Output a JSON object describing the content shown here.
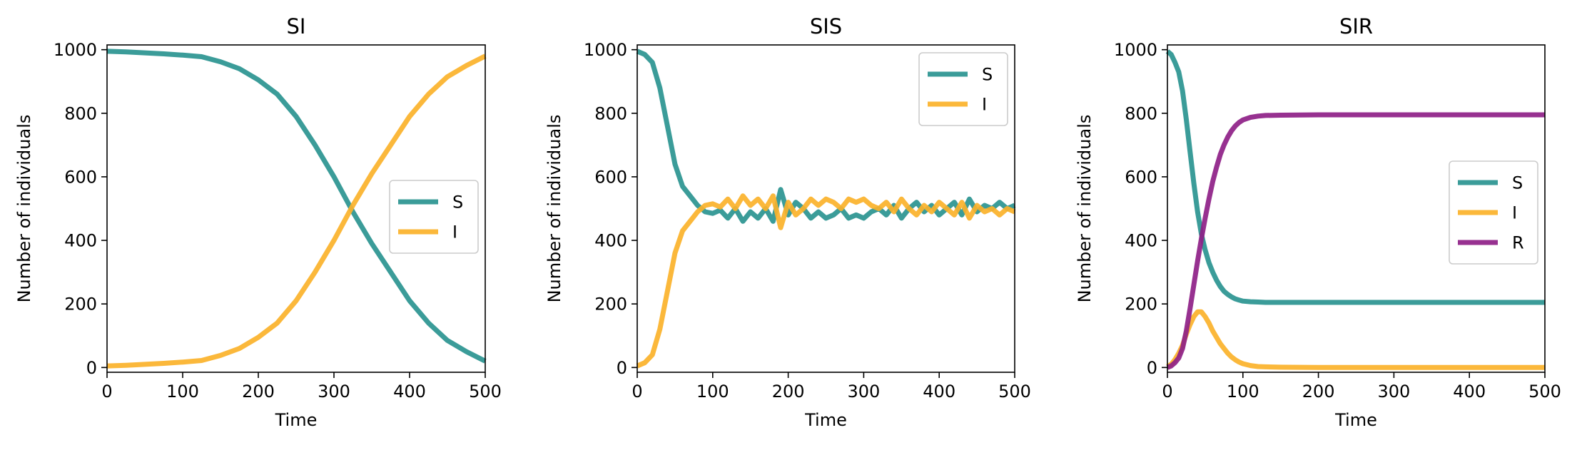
{
  "colors": {
    "S": "#2a9490",
    "I": "#fbb22a",
    "R": "#8e1f87"
  },
  "chart_data": [
    {
      "type": "line",
      "title": "SI",
      "xlabel": "Time",
      "ylabel": "Number of individuals",
      "xlim": [
        0,
        500
      ],
      "ylim": [
        -15,
        1015
      ],
      "xticks": [
        0,
        100,
        200,
        300,
        400,
        500
      ],
      "yticks": [
        0,
        200,
        400,
        600,
        800,
        1000
      ],
      "grid": false,
      "legend": "center-right",
      "x": [
        0,
        25,
        50,
        75,
        100,
        125,
        150,
        175,
        200,
        225,
        250,
        275,
        300,
        325,
        350,
        375,
        400,
        425,
        450,
        475,
        500
      ],
      "series": [
        {
          "name": "S",
          "color": "#2a9490",
          "values": [
            995,
            993,
            990,
            987,
            983,
            978,
            962,
            940,
            905,
            860,
            790,
            700,
            600,
            490,
            390,
            300,
            210,
            140,
            85,
            50,
            20
          ]
        },
        {
          "name": "I",
          "color": "#fbb22a",
          "values": [
            5,
            7,
            10,
            13,
            17,
            22,
            38,
            60,
            95,
            140,
            210,
            300,
            400,
            510,
            610,
            700,
            790,
            860,
            915,
            950,
            980
          ]
        }
      ]
    },
    {
      "type": "line",
      "title": "SIS",
      "xlabel": "Time",
      "ylabel": "Number of individuals",
      "xlim": [
        0,
        500
      ],
      "ylim": [
        -15,
        1015
      ],
      "xticks": [
        0,
        100,
        200,
        300,
        400,
        500
      ],
      "yticks": [
        0,
        200,
        400,
        600,
        800,
        1000
      ],
      "grid": false,
      "legend": "top-right",
      "x": [
        0,
        10,
        20,
        30,
        40,
        50,
        60,
        70,
        80,
        90,
        100,
        110,
        120,
        130,
        140,
        150,
        160,
        170,
        180,
        190,
        200,
        210,
        220,
        230,
        240,
        250,
        260,
        270,
        280,
        290,
        300,
        310,
        320,
        330,
        340,
        350,
        360,
        370,
        380,
        390,
        400,
        410,
        420,
        430,
        440,
        450,
        460,
        470,
        480,
        490,
        500
      ],
      "series": [
        {
          "name": "S",
          "color": "#2a9490",
          "values": [
            995,
            985,
            960,
            880,
            760,
            640,
            570,
            540,
            510,
            490,
            485,
            495,
            470,
            500,
            460,
            490,
            470,
            500,
            460,
            560,
            480,
            520,
            500,
            470,
            490,
            470,
            480,
            500,
            470,
            480,
            470,
            490,
            500,
            480,
            510,
            470,
            500,
            520,
            490,
            510,
            480,
            500,
            520,
            480,
            530,
            490,
            510,
            500,
            520,
            500,
            510
          ]
        },
        {
          "name": "I",
          "color": "#fbb22a",
          "values": [
            5,
            15,
            40,
            120,
            240,
            360,
            430,
            460,
            490,
            510,
            515,
            505,
            530,
            500,
            540,
            510,
            530,
            500,
            540,
            440,
            520,
            480,
            500,
            530,
            510,
            530,
            520,
            500,
            530,
            520,
            530,
            510,
            500,
            520,
            490,
            530,
            500,
            480,
            510,
            490,
            520,
            500,
            480,
            520,
            470,
            510,
            490,
            500,
            480,
            500,
            490
          ]
        }
      ]
    },
    {
      "type": "line",
      "title": "SIR",
      "xlabel": "Time",
      "ylabel": "Number of individuals",
      "xlim": [
        0,
        500
      ],
      "ylim": [
        -15,
        1015
      ],
      "xticks": [
        0,
        100,
        200,
        300,
        400,
        500
      ],
      "yticks": [
        0,
        200,
        400,
        600,
        800,
        1000
      ],
      "grid": false,
      "legend": "center-right",
      "x": [
        0,
        5,
        10,
        15,
        20,
        25,
        30,
        35,
        40,
        45,
        50,
        55,
        60,
        65,
        70,
        75,
        80,
        85,
        90,
        95,
        100,
        110,
        120,
        130,
        150,
        200,
        300,
        400,
        500
      ],
      "series": [
        {
          "name": "S",
          "color": "#2a9490",
          "values": [
            995,
            985,
            960,
            930,
            870,
            780,
            680,
            580,
            490,
            420,
            370,
            330,
            300,
            275,
            255,
            240,
            230,
            222,
            216,
            212,
            209,
            207,
            206,
            205,
            205,
            205,
            205,
            205,
            205
          ]
        },
        {
          "name": "I",
          "color": "#fbb22a",
          "values": [
            3,
            10,
            25,
            45,
            70,
            105,
            135,
            160,
            175,
            175,
            160,
            140,
            115,
            95,
            75,
            60,
            45,
            33,
            24,
            17,
            12,
            6,
            3,
            2,
            1,
            0,
            0,
            0,
            0
          ]
        },
        {
          "name": "R",
          "color": "#8e1f87",
          "values": [
            0,
            5,
            15,
            30,
            60,
            115,
            185,
            260,
            335,
            405,
            470,
            530,
            585,
            630,
            670,
            700,
            725,
            745,
            760,
            771,
            779,
            787,
            791,
            793,
            794,
            795,
            795,
            795,
            795
          ]
        }
      ]
    }
  ]
}
